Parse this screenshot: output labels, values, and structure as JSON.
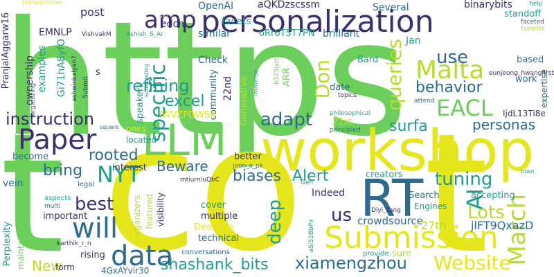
{
  "words": [
    {
      "text": "https",
      "color": "#6ccf5c"
    },
    {
      "text": "co",
      "color": "#e5e61b"
    },
    {
      "text": "t",
      "color": "#6ccf5c"
    },
    {
      "text": "t",
      "color": "#e5e61b"
    },
    {
      "text": "workshop",
      "color": "#e5e61b"
    },
    {
      "text": "personalization",
      "color": "#3b2f6e"
    },
    {
      "text": "RT",
      "color": "#2d6b8e"
    },
    {
      "text": "LLM",
      "color": "#6ccf5c"
    },
    {
      "text": "Submission",
      "color": "#e5e61b"
    },
    {
      "text": "data",
      "color": "#2d6b8e"
    },
    {
      "text": "will",
      "color": "#2d6b8e"
    },
    {
      "text": "Paper",
      "color": "#3b2f6e"
    },
    {
      "text": "amp",
      "color": "#3b2f6e"
    },
    {
      "text": "Malta",
      "color": "#b6dd2a"
    },
    {
      "text": "EACL",
      "color": "#6ccf5c"
    },
    {
      "text": "March",
      "color": "#b6dd2a"
    },
    {
      "text": "AI",
      "color": "#1f9d8a"
    },
    {
      "text": "instruction",
      "color": "#3b2f6e"
    },
    {
      "text": "specific",
      "color": "#1f9d8a"
    },
    {
      "text": "queries",
      "color": "#b6dd2a"
    },
    {
      "text": "Website",
      "color": "#e5e61b"
    },
    {
      "text": "NYT",
      "color": "#1f9d8a"
    },
    {
      "text": "xiamengzhou",
      "color": "#2d6b8e"
    },
    {
      "text": "shashank_bits",
      "color": "#1f9d8a"
    },
    {
      "text": "best",
      "color": "#3b2f6e"
    },
    {
      "text": "tuning",
      "color": "#1f9d8a"
    },
    {
      "text": "refining",
      "color": "#1f9d8a"
    },
    {
      "text": "excel",
      "color": "#1f9d8a"
    },
    {
      "text": "adapt",
      "color": "#2d6b8e"
    },
    {
      "text": "Don",
      "color": "#b6dd2a"
    },
    {
      "text": "use",
      "color": "#2d6b8e"
    },
    {
      "text": "behavior",
      "color": "#2d6b8e"
    },
    {
      "text": "personas",
      "color": "#2d6b8e"
    },
    {
      "text": "surfa",
      "color": "#1f9d8a"
    },
    {
      "text": "deep",
      "color": "#1f9d8a"
    },
    {
      "text": "Lots",
      "color": "#b6dd2a"
    },
    {
      "text": "us",
      "color": "#3b2f6e"
    },
    {
      "text": "Alert",
      "color": "#1f9d8a"
    },
    {
      "text": "biases",
      "color": "#2d6b8e"
    },
    {
      "text": "bring",
      "color": "#2d6b8e"
    },
    {
      "text": "rooted",
      "color": "#2d6b8e"
    },
    {
      "text": "Beware",
      "color": "#2d6b8e"
    },
    {
      "text": "New",
      "color": "#b6dd2a"
    },
    {
      "text": "crowdsource",
      "color": "#2d6b8e"
    },
    {
      "text": "jlFT9QxazD",
      "color": "#2d6b8e"
    },
    {
      "text": "27th",
      "color": "#b6dd2a"
    },
    {
      "text": "Indeed",
      "color": "#3b2f6e"
    },
    {
      "text": "post",
      "color": "#3b2f6e"
    },
    {
      "text": "OpenAI",
      "color": "#2d6b8e"
    },
    {
      "text": "aQKDzscssm",
      "color": "#3b2f6e"
    },
    {
      "text": "Several",
      "color": "#2d6b8e"
    },
    {
      "text": "binarybits",
      "color": "#3b2f6e"
    },
    {
      "text": "standoff",
      "color": "#1f9d8a"
    },
    {
      "text": "EMNLP",
      "color": "#3b2f6e"
    },
    {
      "text": "edchi",
      "color": "#3b2f6e"
    },
    {
      "text": "examples",
      "color": "#1f9d8a"
    },
    {
      "text": "ownership",
      "color": "#3b2f6e"
    },
    {
      "text": "Gi71hA8yfO",
      "color": "#1f9d8a"
    },
    {
      "text": "PranjalAggarw16",
      "color": "#3b2f6e"
    },
    {
      "text": "facets",
      "color": "#1f9d8a"
    },
    {
      "text": "Check",
      "color": "#2d6b8e"
    },
    {
      "text": "oRr6T5T7PN",
      "color": "#1f9d8a"
    },
    {
      "text": "brilliant",
      "color": "#2d6b8e"
    },
    {
      "text": "similar",
      "color": "#2d6b8e"
    },
    {
      "text": "Jan",
      "color": "#1f9d8a"
    },
    {
      "text": "based",
      "color": "#2d6b8e"
    },
    {
      "text": "work",
      "color": "#2d6b8e"
    },
    {
      "text": "expertise",
      "color": "#2d6b8e"
    },
    {
      "text": "Bard",
      "color": "#1f9d8a"
    },
    {
      "text": "22nd",
      "color": "#3b2f6e"
    },
    {
      "text": "community",
      "color": "#2d6b8e"
    },
    {
      "text": "speakers",
      "color": "#1f9d8a"
    },
    {
      "text": "lWVZPDWSii",
      "color": "#e5e61b"
    },
    {
      "text": "Generative",
      "color": "#b6dd2a"
    },
    {
      "text": "21st",
      "color": "#b6dd2a"
    },
    {
      "text": "date",
      "color": "#2d6b8e"
    },
    {
      "text": "ARR",
      "color": "#6ccf5c"
    },
    {
      "text": "IjdL13Ti8e",
      "color": "#3b2f6e"
    },
    {
      "text": "located",
      "color": "#1f9d8a"
    },
    {
      "text": "ones",
      "color": "#e5e61b"
    },
    {
      "text": "better",
      "color": "#3b2f6e"
    },
    {
      "text": "interest",
      "color": "#3b2f6e"
    },
    {
      "text": "become",
      "color": "#2d6b8e"
    },
    {
      "text": "creators",
      "color": "#1f9d8a"
    },
    {
      "text": "Search",
      "color": "#2d6b8e"
    },
    {
      "text": "Engines",
      "color": "#1f9d8a"
    },
    {
      "text": "accepting",
      "color": "#1f9d8a"
    },
    {
      "text": "sure",
      "color": "#b6dd2a"
    },
    {
      "text": "provide",
      "color": "#1f9d8a"
    },
    {
      "text": "cover",
      "color": "#1f9d8a"
    },
    {
      "text": "multiple",
      "color": "#3b2f6e"
    },
    {
      "text": "Deadline",
      "color": "#e5e61b"
    },
    {
      "text": "technical",
      "color": "#2d6b8e"
    },
    {
      "text": "rising",
      "color": "#3b2f6e"
    },
    {
      "text": "form",
      "color": "#3b2f6e"
    },
    {
      "text": "4GxAYvir30",
      "color": "#2d6b8e"
    },
    {
      "text": "conversations",
      "color": "#2d6b8e"
    },
    {
      "text": "important",
      "color": "#3b2f6e"
    },
    {
      "text": "Perplexity",
      "color": "#1f9d8a"
    },
    {
      "text": "maintain",
      "color": "#6ccf5c"
    },
    {
      "text": "vein",
      "color": "#2d6b8e"
    },
    {
      "text": "legal",
      "color": "#2d6b8e"
    },
    {
      "text": "aspects",
      "color": "#1f9d8a"
    },
    {
      "text": "multi",
      "color": "#2d6b8e"
    },
    {
      "text": "karthik_r_n",
      "color": "#3b2f6e"
    },
    {
      "text": "organizers",
      "color": "#b6dd2a"
    },
    {
      "text": "featured",
      "color": "#b6dd2a"
    },
    {
      "text": "visibility",
      "color": "#3b2f6e"
    },
    {
      "text": "joon_s_pk",
      "color": "#2d6b8e"
    },
    {
      "text": "Diyi_Yang",
      "color": "#3b2f6e"
    },
    {
      "text": "Gen",
      "color": "#1f9d8a"
    },
    {
      "text": "mtiurniuQbC",
      "color": "#3b2f6e"
    },
    {
      "text": "perspectives",
      "color": "#e5e61b"
    },
    {
      "text": "VishvakM",
      "color": "#3b2f6e"
    },
    {
      "text": "Ashish_S_AI",
      "color": "#1f9d8a"
    },
    {
      "text": "set",
      "color": "#b6dd2a"
    },
    {
      "text": "s",
      "color": "#3b2f6e"
    },
    {
      "text": "ashwinkalyan7",
      "color": "#3b2f6e"
    },
    {
      "text": "Submit",
      "color": "#3b2f6e"
    },
    {
      "text": "organizing",
      "color": "#2d6b8e"
    },
    {
      "text": "surrounding",
      "color": "#1f9d8a"
    },
    {
      "text": "immerse",
      "color": "#1f9d8a"
    },
    {
      "text": "b3Z5ixtt5",
      "color": "#6ccf5c"
    },
    {
      "text": "eunjeong_hwangfirst",
      "color": "#3b2f6e"
    },
    {
      "text": "topics",
      "color": "#3b2f6e"
    },
    {
      "text": "attend",
      "color": "#2d6b8e"
    },
    {
      "text": "philosophical",
      "color": "#1f9d8a"
    },
    {
      "text": "principled",
      "color": "#2d6b8e"
    },
    {
      "text": "square",
      "color": "#2d6b8e"
    },
    {
      "text": "town",
      "color": "#1f9d8a"
    },
    {
      "text": "help",
      "color": "#1f9d8a"
    },
    {
      "text": "faceted",
      "color": "#2d6b8e"
    },
    {
      "text": "favorite",
      "color": "#b6dd2a"
    },
    {
      "text": "aSi52BbPir",
      "color": "#1f9d8a"
    }
  ]
}
